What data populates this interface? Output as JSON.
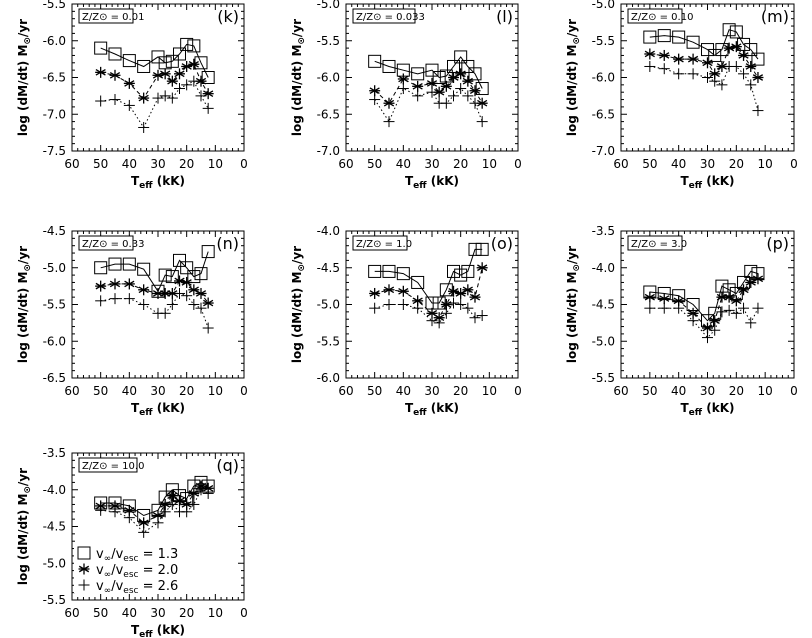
{
  "chart_data": {
    "type": "scatter",
    "shared": {
      "xlabel": "T_eff (kK)",
      "ylabel": "log (dM/dt) M_⊙/yr",
      "xlim": [
        60,
        0
      ],
      "xticks": [
        60,
        50,
        40,
        30,
        20,
        10,
        0
      ],
      "ytick_step": 0.5,
      "grid": false,
      "x": [
        50,
        45,
        40,
        35,
        30,
        27.5,
        25,
        22.5,
        20,
        17.5,
        15,
        12.5
      ],
      "markers": {
        "square": "□",
        "asterisk": "*",
        "plus": "+"
      }
    },
    "legend": {
      "panel": "q",
      "placement": "bottom-left",
      "entries": [
        {
          "marker": "square",
          "text": "v∞/vesc = 1.3"
        },
        {
          "marker": "asterisk",
          "text": "v∞/vesc = 2.0"
        },
        {
          "marker": "plus",
          "text": "v∞/vesc = 2.6"
        }
      ]
    },
    "panels": [
      {
        "letter": "(k)",
        "metallicity": "Z/Z⊙ = 0.01",
        "ylim": [
          -7.5,
          -5.5
        ],
        "yticks": [
          "-7.5",
          "-7.0",
          "-6.5",
          "-6.0",
          "-5.5"
        ],
        "series": [
          {
            "marker": "square",
            "values": [
              -6.1,
              -6.18,
              -6.27,
              -6.35,
              -6.22,
              -6.3,
              -6.28,
              -6.18,
              -6.05,
              -6.07,
              -6.3,
              -6.5
            ]
          },
          {
            "marker": "asterisk",
            "values": [
              -6.43,
              -6.47,
              -6.58,
              -6.78,
              -6.47,
              -6.45,
              -6.55,
              -6.45,
              -6.35,
              -6.32,
              -6.55,
              -6.72
            ]
          },
          {
            "marker": "plus",
            "values": [
              -6.82,
              -6.8,
              -6.88,
              -7.18,
              -6.78,
              -6.75,
              -6.78,
              -6.65,
              -6.6,
              -6.55,
              -6.75,
              -6.92
            ]
          }
        ]
      },
      {
        "letter": "(l)",
        "metallicity": "Z/Z⊙ = 0.033",
        "ylim": [
          -7.0,
          -5.0
        ],
        "yticks": [
          "-7.0",
          "-6.5",
          "-6.0",
          "-5.5",
          "-5.0"
        ],
        "series": [
          {
            "marker": "square",
            "values": [
              -5.78,
              -5.85,
              -5.9,
              -5.95,
              -5.9,
              -6.0,
              -5.98,
              -5.85,
              -5.72,
              -5.85,
              -5.95,
              -6.15
            ]
          },
          {
            "marker": "asterisk",
            "values": [
              -6.18,
              -6.35,
              -6.02,
              -6.12,
              -6.08,
              -6.2,
              -6.12,
              -6.0,
              -5.95,
              -6.05,
              -6.18,
              -6.35
            ]
          },
          {
            "marker": "plus",
            "values": [
              -6.3,
              -6.6,
              -6.15,
              -6.25,
              -6.2,
              -6.35,
              -6.35,
              -6.25,
              -6.15,
              -6.25,
              -6.35,
              -6.6
            ]
          }
        ]
      },
      {
        "letter": "(m)",
        "metallicity": "Z/Z⊙ = 0.10",
        "ylim": [
          -7.0,
          -5.0
        ],
        "yticks": [
          "-7.0",
          "-6.5",
          "-6.0",
          "-5.5",
          "-5.0"
        ],
        "series": [
          {
            "marker": "square",
            "values": [
              -5.45,
              -5.43,
              -5.45,
              -5.52,
              -5.62,
              -5.7,
              -5.62,
              -5.35,
              -5.38,
              -5.55,
              -5.62,
              -5.75
            ]
          },
          {
            "marker": "asterisk",
            "values": [
              -5.68,
              -5.7,
              -5.75,
              -5.75,
              -5.8,
              -5.95,
              -5.85,
              -5.6,
              -5.58,
              -5.7,
              -5.85,
              -6.0
            ]
          },
          {
            "marker": "plus",
            "values": [
              -5.85,
              -5.88,
              -5.95,
              -5.95,
              -6.0,
              -6.05,
              -6.1,
              -5.85,
              -5.85,
              -5.95,
              -6.1,
              -6.45
            ]
          }
        ]
      },
      {
        "letter": "(n)",
        "metallicity": "Z/Z⊙ = 0.33",
        "ylim": [
          -6.5,
          -4.5
        ],
        "yticks": [
          "-6.5",
          "-6.0",
          "-5.5",
          "-5.0",
          "-4.5"
        ],
        "series": [
          {
            "marker": "square",
            "values": [
              -5.0,
              -4.95,
              -4.95,
              -5.02,
              -5.32,
              -5.1,
              -5.12,
              -4.9,
              -5.0,
              -5.12,
              -5.08,
              -4.78
            ]
          },
          {
            "marker": "asterisk",
            "values": [
              -5.25,
              -5.22,
              -5.22,
              -5.3,
              -5.35,
              -5.35,
              -5.35,
              -5.18,
              -5.2,
              -5.3,
              -5.35,
              -5.48
            ]
          },
          {
            "marker": "plus",
            "values": [
              -5.45,
              -5.42,
              -5.42,
              -5.5,
              -5.62,
              -5.62,
              -5.5,
              -5.35,
              -5.38,
              -5.5,
              -5.55,
              -5.82
            ]
          }
        ]
      },
      {
        "letter": "(o)",
        "metallicity": "Z/Z⊙ = 1.0",
        "ylim": [
          -6.0,
          -4.0
        ],
        "yticks": [
          "-6.0",
          "-5.5",
          "-5.0",
          "-4.5",
          "-4.0"
        ],
        "series": [
          {
            "marker": "square",
            "values": [
              -4.55,
              -4.55,
              -4.58,
              -4.7,
              -4.98,
              -4.98,
              -4.8,
              -4.55,
              -4.6,
              -4.55,
              -4.25,
              -4.25
            ]
          },
          {
            "marker": "asterisk",
            "values": [
              -4.85,
              -4.8,
              -4.82,
              -4.95,
              -5.12,
              -5.18,
              -5.0,
              -4.82,
              -4.85,
              -4.8,
              -4.9,
              -4.5
            ]
          },
          {
            "marker": "plus",
            "values": [
              -5.05,
              -5.0,
              -5.0,
              -5.05,
              -5.22,
              -5.25,
              -5.12,
              -4.98,
              -5.0,
              -5.05,
              -5.18,
              -5.15
            ]
          }
        ]
      },
      {
        "letter": "(p)",
        "metallicity": "Z/Z⊙ = 3.0",
        "ylim": [
          -5.5,
          -3.5
        ],
        "yticks": [
          "-5.5",
          "-5.0",
          "-4.5",
          "-4.0",
          "-3.5"
        ],
        "series": [
          {
            "marker": "square",
            "values": [
              -4.33,
              -4.35,
              -4.38,
              -4.5,
              -4.72,
              -4.62,
              -4.25,
              -4.3,
              -4.35,
              -4.2,
              -4.05,
              -4.08
            ]
          },
          {
            "marker": "asterisk",
            "values": [
              -4.4,
              -4.42,
              -4.45,
              -4.62,
              -4.82,
              -4.72,
              -4.4,
              -4.4,
              -4.45,
              -4.3,
              -4.2,
              -4.15
            ]
          },
          {
            "marker": "plus",
            "values": [
              -4.55,
              -4.55,
              -4.55,
              -4.72,
              -4.95,
              -4.85,
              -4.6,
              -4.58,
              -4.62,
              -4.55,
              -4.75,
              -4.55
            ]
          }
        ]
      },
      {
        "letter": "(q)",
        "metallicity": "Z/Z⊙ = 10.0",
        "ylim": [
          -5.5,
          -3.5
        ],
        "yticks": [
          "-5.5",
          "-5.0",
          "-4.5",
          "-4.0",
          "-3.5"
        ],
        "series": [
          {
            "marker": "square",
            "values": [
              -4.18,
              -4.18,
              -4.22,
              -4.35,
              -4.28,
              -4.1,
              -4.0,
              -4.08,
              -4.12,
              -3.95,
              -3.9,
              -3.95
            ]
          },
          {
            "marker": "asterisk",
            "values": [
              -4.22,
              -4.22,
              -4.28,
              -4.45,
              -4.35,
              -4.2,
              -4.08,
              -4.15,
              -4.2,
              -4.05,
              -3.95,
              -3.98
            ]
          },
          {
            "marker": "plus",
            "values": [
              -4.28,
              -4.3,
              -4.38,
              -4.58,
              -4.45,
              -4.3,
              -4.2,
              -4.3,
              -4.3,
              -4.2,
              -4.0,
              -4.05
            ]
          }
        ]
      }
    ]
  }
}
